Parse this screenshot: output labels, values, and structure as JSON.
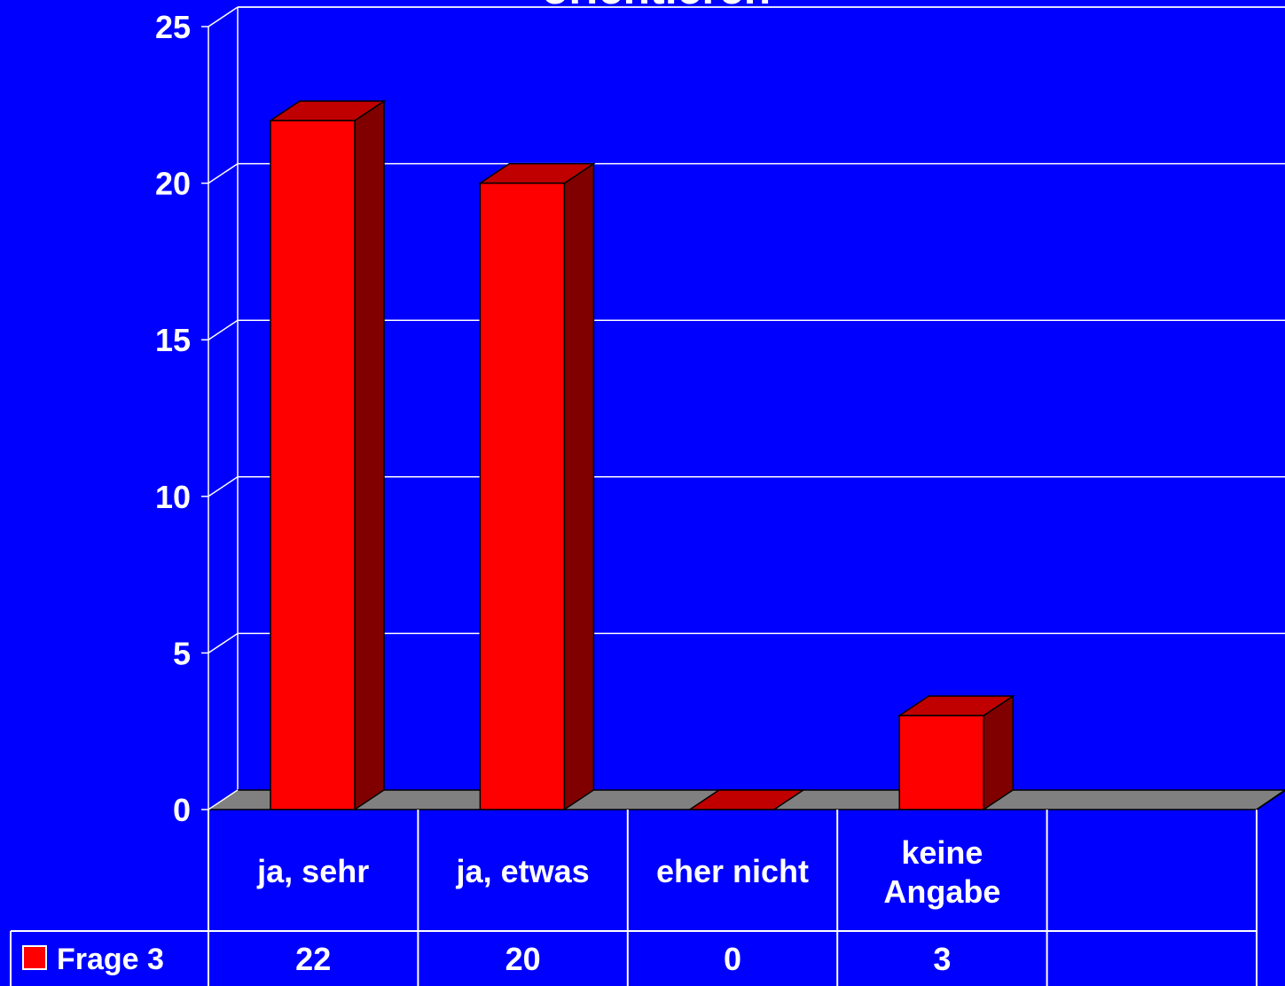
{
  "chart_data": {
    "type": "bar3d",
    "title": "orientieren",
    "categories": [
      "ja, sehr",
      "ja, etwas",
      "eher nicht",
      "keine Angabe",
      null
    ],
    "series": [
      {
        "name": "Frage 3",
        "color": "#ff0000",
        "values": [
          22,
          20,
          0,
          3,
          null
        ]
      }
    ],
    "ylim": [
      0,
      25
    ],
    "yticks": [
      0,
      5,
      10,
      15,
      20,
      25
    ],
    "grid": true,
    "data_table": true
  }
}
